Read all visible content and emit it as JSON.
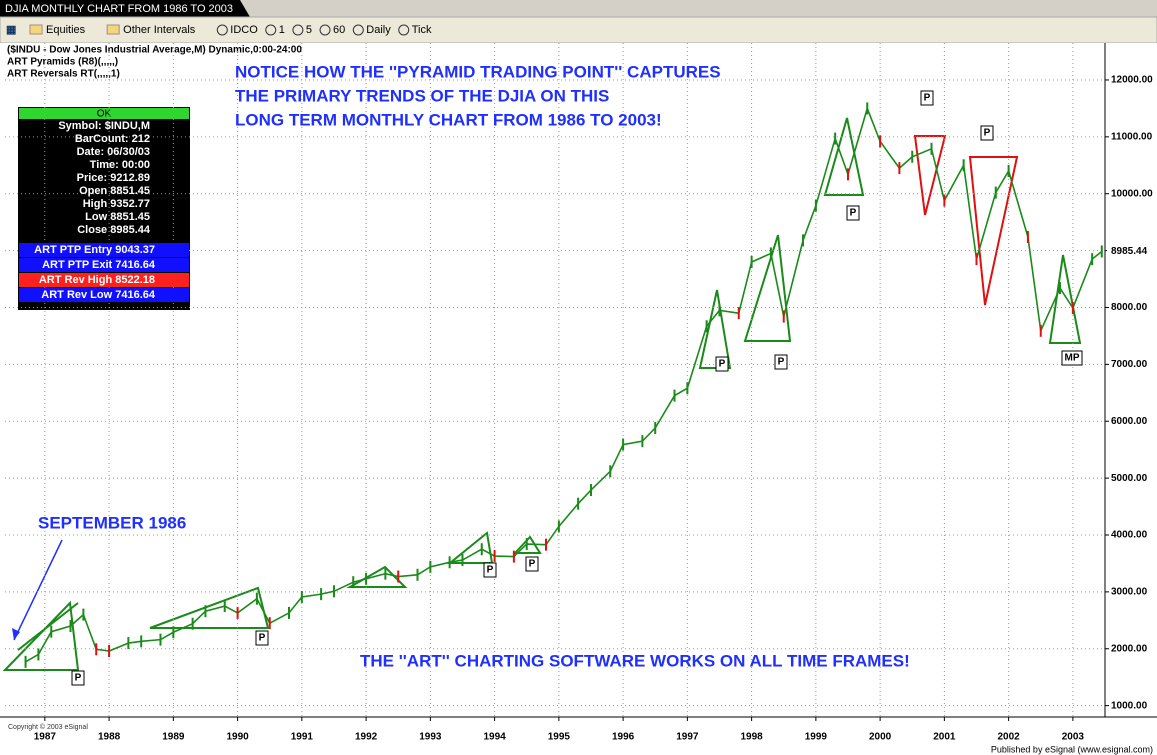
{
  "chart_data": {
    "type": "line",
    "title": "DJIA MONTHLY CHART FROM 1986 TO 2003",
    "toolbar": [
      "Equities",
      "Other Intervals",
      "IDCO",
      "1",
      "5",
      "60",
      "Daily",
      "Tick"
    ],
    "header": [
      "($INDU - Dow Jones Industrial Average,M) Dynamic,0:00-24:00",
      "ART Pyramids (R8)(,,,,,)",
      "ART Reversals RT(,,,,,1)"
    ],
    "info_box": {
      "status": "OK",
      "lines": [
        "Symbol: $INDU,M",
        "BarCount: 212",
        "Date: 06/30/03",
        "Time: 00:00",
        "Price: 9212.89",
        "Open 8851.45",
        "High 9352.77",
        "Low 8851.45",
        "Close 8985.44"
      ],
      "studies": [
        "ART PTP Entry 9043.37",
        "ART PTP Exit 7416.64",
        "ART Rev High 8522.18",
        "ART Rev Low 7416.64"
      ]
    },
    "annotations": [
      "NOTICE HOW THE ''PYRAMID TRADING POINT'' CAPTURES",
      "THE PRIMARY TRENDS OF THE DJIA ON THIS",
      "LONG TERM MONTHLY CHART FROM 1986 TO 2003!",
      "SEPTEMBER 1986",
      "THE ''ART'' CHARTING SOFTWARE WORKS ON ALL TIME FRAMES!"
    ],
    "markers": [
      "P",
      "P",
      "P",
      "P",
      "P",
      "P",
      "P",
      "P",
      "P",
      "MP"
    ],
    "copyright": "Copyright © 2003 eSignal",
    "footer": "Published by eSignal (www.esignal.com)",
    "x": [
      1986.7,
      1986.9,
      1987.1,
      1987.4,
      1987.6,
      1987.8,
      1988.0,
      1988.3,
      1988.5,
      1988.8,
      1989.0,
      1989.3,
      1989.5,
      1989.8,
      1990.0,
      1990.3,
      1990.5,
      1990.8,
      1991.0,
      1991.3,
      1991.5,
      1991.8,
      1992.0,
      1992.3,
      1992.5,
      1992.8,
      1993.0,
      1993.3,
      1993.5,
      1993.8,
      1994.0,
      1994.3,
      1994.5,
      1994.8,
      1995.0,
      1995.3,
      1995.5,
      1995.8,
      1996.0,
      1996.3,
      1996.5,
      1996.8,
      1997.0,
      1997.3,
      1997.5,
      1997.8,
      1998.0,
      1998.3,
      1998.5,
      1998.8,
      1999.0,
      1999.3,
      1999.5,
      1999.8,
      2000.0,
      2000.3,
      2000.5,
      2000.8,
      2001.0,
      2001.3,
      2001.5,
      2001.8,
      2002.0,
      2002.3,
      2002.5,
      2002.8,
      2003.0,
      2003.3,
      2003.45
    ],
    "values": [
      1770,
      1900,
      2300,
      2400,
      2600,
      1990,
      1960,
      2100,
      2130,
      2160,
      2290,
      2440,
      2660,
      2750,
      2630,
      2880,
      2450,
      2630,
      2910,
      2960,
      3010,
      3170,
      3230,
      3320,
      3270,
      3300,
      3440,
      3520,
      3560,
      3750,
      3630,
      3620,
      3840,
      3830,
      4150,
      4550,
      4790,
      5120,
      5590,
      5650,
      5880,
      6450,
      6580,
      7670,
      7950,
      7900,
      8800,
      8950,
      7840,
      9180,
      9790,
      10970,
      10340,
      11500,
      10920,
      10450,
      10650,
      10790,
      9880,
      10500,
      8850,
      10020,
      10400,
      9240,
      7590,
      8340,
      7990,
      8850,
      8985
    ],
    "color": "#1a8a1a",
    "last_price": 8985.44,
    "xlim": [
      1986.38,
      2003.5
    ],
    "xticks": [
      1987,
      1988,
      1989,
      1990,
      1991,
      1992,
      1993,
      1994,
      1995,
      1996,
      1997,
      1998,
      1999,
      2000,
      2001,
      2002,
      2003
    ],
    "ylim": [
      800,
      12650
    ],
    "yticks": [
      {
        "value": 1000,
        "label": "1000.00"
      },
      {
        "value": 2000,
        "label": "2000.00"
      },
      {
        "value": 3000,
        "label": "3000.00"
      },
      {
        "value": 4000,
        "label": "4000.00"
      },
      {
        "value": 5000,
        "label": "5000.00"
      },
      {
        "value": 6000,
        "label": "6000.00"
      },
      {
        "value": 7000,
        "label": "7000.00"
      },
      {
        "value": 8000,
        "label": "8000.00"
      },
      {
        "value": 9000,
        "label": "9000.00"
      },
      {
        "value": 10000,
        "label": "10000.00"
      },
      {
        "value": 11000,
        "label": "11000.00"
      },
      {
        "value": 12000,
        "label": "12000.00"
      }
    ],
    "grid": true
  }
}
